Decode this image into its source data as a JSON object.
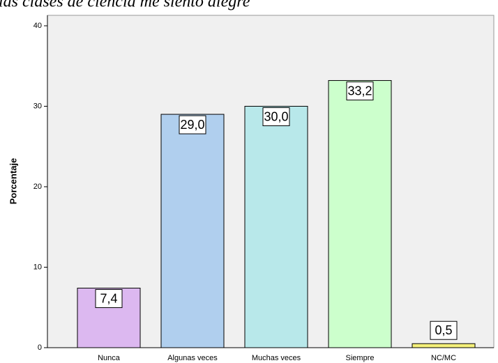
{
  "chart_data": {
    "type": "bar",
    "title": "las clases de ciencia me siento alegre",
    "y_label": "Porcentaje",
    "categories": [
      "Nunca",
      "Algunas veces",
      "Muchas veces",
      "Siempre",
      "NC/MC"
    ],
    "values": [
      7.4,
      29.0,
      30.0,
      33.2,
      0.5
    ],
    "value_labels": [
      "7,4",
      "29,0",
      "30,0",
      "33,2",
      "0,5"
    ],
    "colors": [
      "#dcb8f0",
      "#b0cfee",
      "#b8e8ea",
      "#ccffcc",
      "#f4f07a"
    ],
    "ylim": [
      0,
      41.3
    ],
    "yticks": [
      0,
      10,
      20,
      30,
      40
    ],
    "grid": false
  }
}
